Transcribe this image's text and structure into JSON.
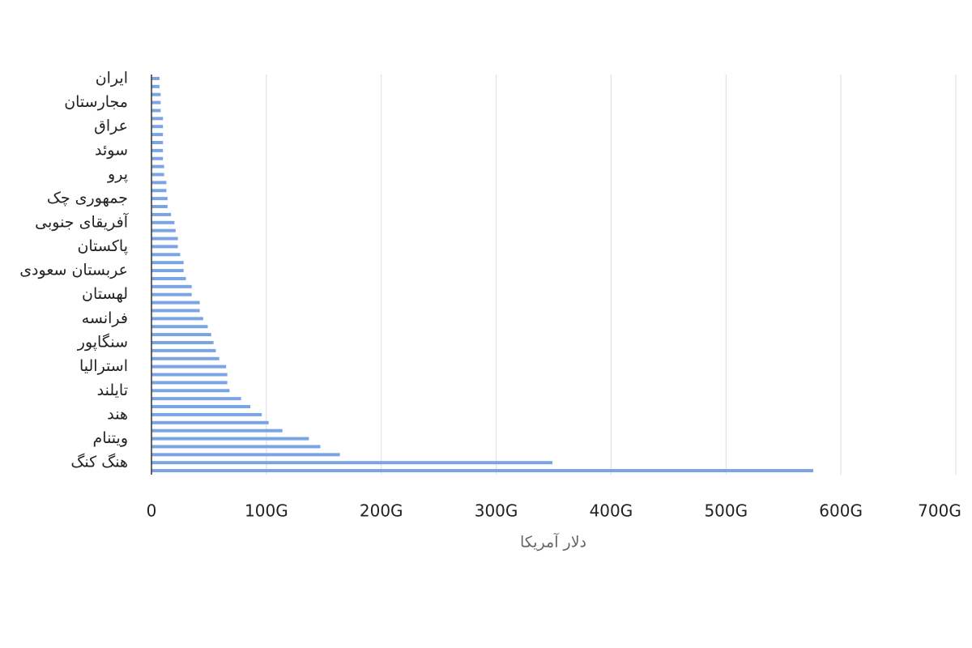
{
  "chart_data": {
    "type": "bar",
    "orientation": "horizontal",
    "x_label": "دلار آمریکا",
    "categories": [
      "ایران",
      null,
      null,
      "مجارستان",
      null,
      null,
      "عراق",
      null,
      null,
      "سوئد",
      null,
      null,
      "پرو",
      null,
      null,
      "جمهوری چک",
      null,
      null,
      "آفریقای جنوبی",
      null,
      null,
      "پاکستان",
      null,
      null,
      "عربستان سعودی",
      null,
      null,
      "لهستان",
      null,
      null,
      "فرانسه",
      null,
      null,
      "سنگاپور",
      null,
      null,
      "استرالیا",
      null,
      null,
      "تایلند",
      null,
      null,
      "هند",
      null,
      null,
      "ویتنام",
      null,
      null,
      "هنگ کنگ",
      null
    ],
    "values": [
      7,
      7,
      8,
      8,
      8,
      10,
      10,
      10,
      10,
      10,
      10,
      11,
      11,
      13,
      13,
      14,
      14,
      17,
      20,
      21,
      23,
      23,
      25,
      28,
      28,
      30,
      35,
      35,
      42,
      42,
      45,
      49,
      52,
      54,
      56,
      59,
      65,
      66,
      66,
      68,
      78,
      86,
      96,
      102,
      114,
      137,
      147,
      164,
      349,
      576
    ],
    "color": "#7ba4e5",
    "xlim": [
      0,
      700
    ],
    "xticks": [
      0,
      {
        "value": 100,
        "label": "100G"
      },
      {
        "value": 200,
        "label": "200G"
      },
      {
        "value": 300,
        "label": "300G"
      },
      {
        "value": 400,
        "label": "400G"
      },
      {
        "value": 500,
        "label": "500G"
      },
      {
        "value": 600,
        "label": "600G"
      },
      {
        "value": 700,
        "label": "700G"
      }
    ],
    "grid": true
  }
}
